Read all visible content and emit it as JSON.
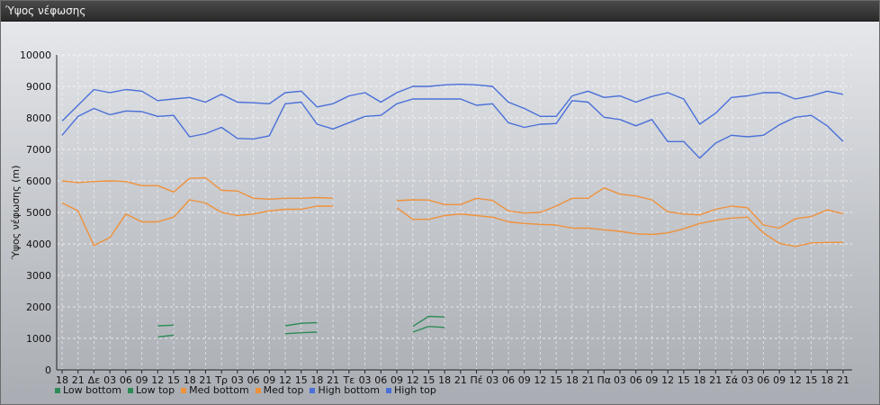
{
  "window": {
    "title": "Ύψος νέφωσης"
  },
  "chart_data": {
    "type": "line",
    "title": "",
    "xlabel": "",
    "ylabel": "Ύψος νέφωσης (m)",
    "ylim": [
      0,
      10000
    ],
    "yticks": [
      0,
      1000,
      2000,
      3000,
      4000,
      5000,
      6000,
      7000,
      8000,
      9000,
      10000
    ],
    "grid": true,
    "legend_position": "bottom-left",
    "categories": [
      "18",
      "21",
      "Δε",
      "03",
      "06",
      "09",
      "12",
      "15",
      "18",
      "21",
      "Τρ",
      "03",
      "06",
      "09",
      "12",
      "15",
      "18",
      "21",
      "Τε",
      "03",
      "06",
      "09",
      "12",
      "15",
      "18",
      "21",
      "Πέ",
      "03",
      "06",
      "09",
      "12",
      "15",
      "18",
      "21",
      "Πα",
      "03",
      "06",
      "09",
      "12",
      "15",
      "18",
      "21",
      "Σά",
      "03",
      "06",
      "09",
      "12",
      "15",
      "18",
      "21"
    ],
    "series": [
      {
        "name": "Low bottom",
        "color": "#2e8b57",
        "values": [
          null,
          null,
          null,
          null,
          null,
          null,
          1050,
          1100,
          null,
          null,
          null,
          null,
          null,
          null,
          1150,
          1180,
          1200,
          null,
          null,
          null,
          null,
          null,
          1200,
          1380,
          1350,
          null,
          null,
          null,
          null,
          null,
          null,
          null,
          null,
          null,
          null,
          null,
          null,
          null,
          null,
          null,
          null,
          null,
          null,
          null,
          null,
          null,
          null,
          null,
          null,
          null
        ]
      },
      {
        "name": "Low top",
        "color": "#2e8b57",
        "values": [
          null,
          null,
          null,
          null,
          null,
          null,
          1400,
          1420,
          null,
          null,
          null,
          null,
          null,
          null,
          1400,
          1480,
          1500,
          null,
          null,
          null,
          null,
          null,
          1380,
          1700,
          1680,
          null,
          null,
          null,
          null,
          null,
          null,
          null,
          null,
          null,
          null,
          null,
          null,
          null,
          null,
          null,
          null,
          null,
          null,
          null,
          null,
          null,
          null,
          null,
          null,
          null
        ]
      },
      {
        "name": "Med bottom",
        "color": "#f0913a",
        "values": [
          5300,
          5050,
          3950,
          4200,
          4950,
          4700,
          4700,
          4850,
          5400,
          5300,
          5000,
          4900,
          4950,
          5050,
          5100,
          5100,
          5200,
          5200,
          null,
          null,
          null,
          5150,
          4780,
          4780,
          4900,
          4950,
          4900,
          4850,
          4700,
          4650,
          4620,
          4600,
          4500,
          4500,
          4450,
          4400,
          4320,
          4300,
          4350,
          4480,
          4650,
          4750,
          4820,
          4850,
          4350,
          4020,
          3920,
          4030,
          4050,
          4050
        ]
      },
      {
        "name": "Med top",
        "color": "#f0913a",
        "values": [
          6000,
          5950,
          5980,
          6000,
          5980,
          5850,
          5850,
          5650,
          6080,
          6100,
          5700,
          5680,
          5450,
          5420,
          5450,
          5450,
          5470,
          5450,
          null,
          null,
          null,
          5370,
          5400,
          5390,
          5250,
          5250,
          5450,
          5380,
          5050,
          4980,
          5000,
          5200,
          5450,
          5450,
          5780,
          5580,
          5520,
          5400,
          5020,
          4950,
          4920,
          5100,
          5200,
          5150,
          4600,
          4500,
          4800,
          4870,
          5080,
          4960
        ]
      },
      {
        "name": "High bottom",
        "color": "#4a6fd8",
        "values": [
          7450,
          8050,
          8300,
          8100,
          8220,
          8200,
          8050,
          8080,
          7400,
          7500,
          7700,
          7350,
          7330,
          7430,
          8450,
          8500,
          7800,
          7650,
          7850,
          8050,
          8080,
          8450,
          8600,
          8600,
          8600,
          8600,
          8400,
          8450,
          7850,
          7700,
          7800,
          7820,
          8550,
          8500,
          8020,
          7950,
          7750,
          7950,
          7250,
          7250,
          6720,
          7200,
          7450,
          7400,
          7450,
          7780,
          8020,
          8080,
          7750,
          7250
        ]
      },
      {
        "name": "High top",
        "color": "#4a6fd8",
        "values": [
          7900,
          8400,
          8900,
          8800,
          8900,
          8850,
          8550,
          8600,
          8650,
          8500,
          8750,
          8500,
          8480,
          8450,
          8800,
          8850,
          8350,
          8450,
          8700,
          8800,
          8500,
          8800,
          9000,
          9000,
          9050,
          9070,
          9050,
          9000,
          8500,
          8300,
          8050,
          8050,
          8700,
          8850,
          8650,
          8700,
          8500,
          8680,
          8800,
          8600,
          7800,
          8150,
          8650,
          8700,
          8800,
          8800,
          8600,
          8700,
          8850,
          8750
        ]
      }
    ]
  }
}
